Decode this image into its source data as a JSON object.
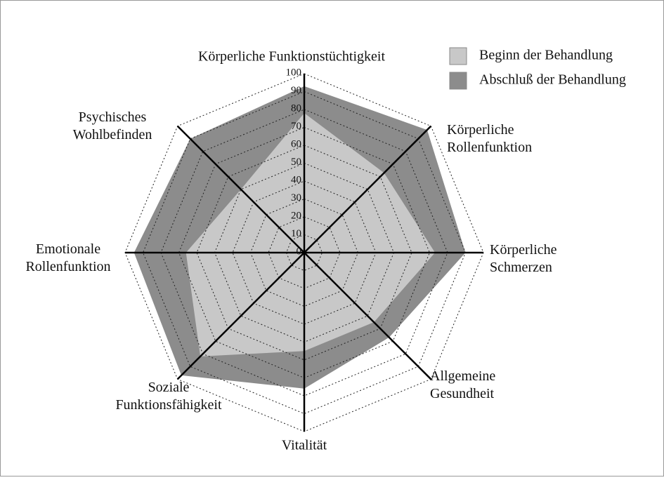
{
  "chart_data": {
    "type": "radar",
    "categories": [
      "Körperliche Funktionstüchtigkeit",
      "Körperliche\nRollenfunktion",
      "Körperliche\nSchmerzen",
      "Allgemeine\nGesundheit",
      "Vitalität",
      "Soziale\nFunktionsfähigkeit",
      "Emotionale\nRollenfunktion",
      "Psychisches\nWohlbefinden"
    ],
    "series": [
      {
        "name": "Beginn der Behandlung",
        "color": "#c8c8c8",
        "values": [
          78,
          63,
          73,
          55,
          55,
          82,
          66,
          50
        ]
      },
      {
        "name": "Abschluß der Behandlung",
        "color": "#8c8c8c",
        "values": [
          93,
          97,
          90,
          67,
          76,
          97,
          95,
          90
        ]
      }
    ],
    "ylim": [
      0,
      100
    ],
    "yticks": [
      0,
      10,
      20,
      30,
      40,
      50,
      60,
      70,
      80,
      90,
      100
    ],
    "grid": true
  }
}
